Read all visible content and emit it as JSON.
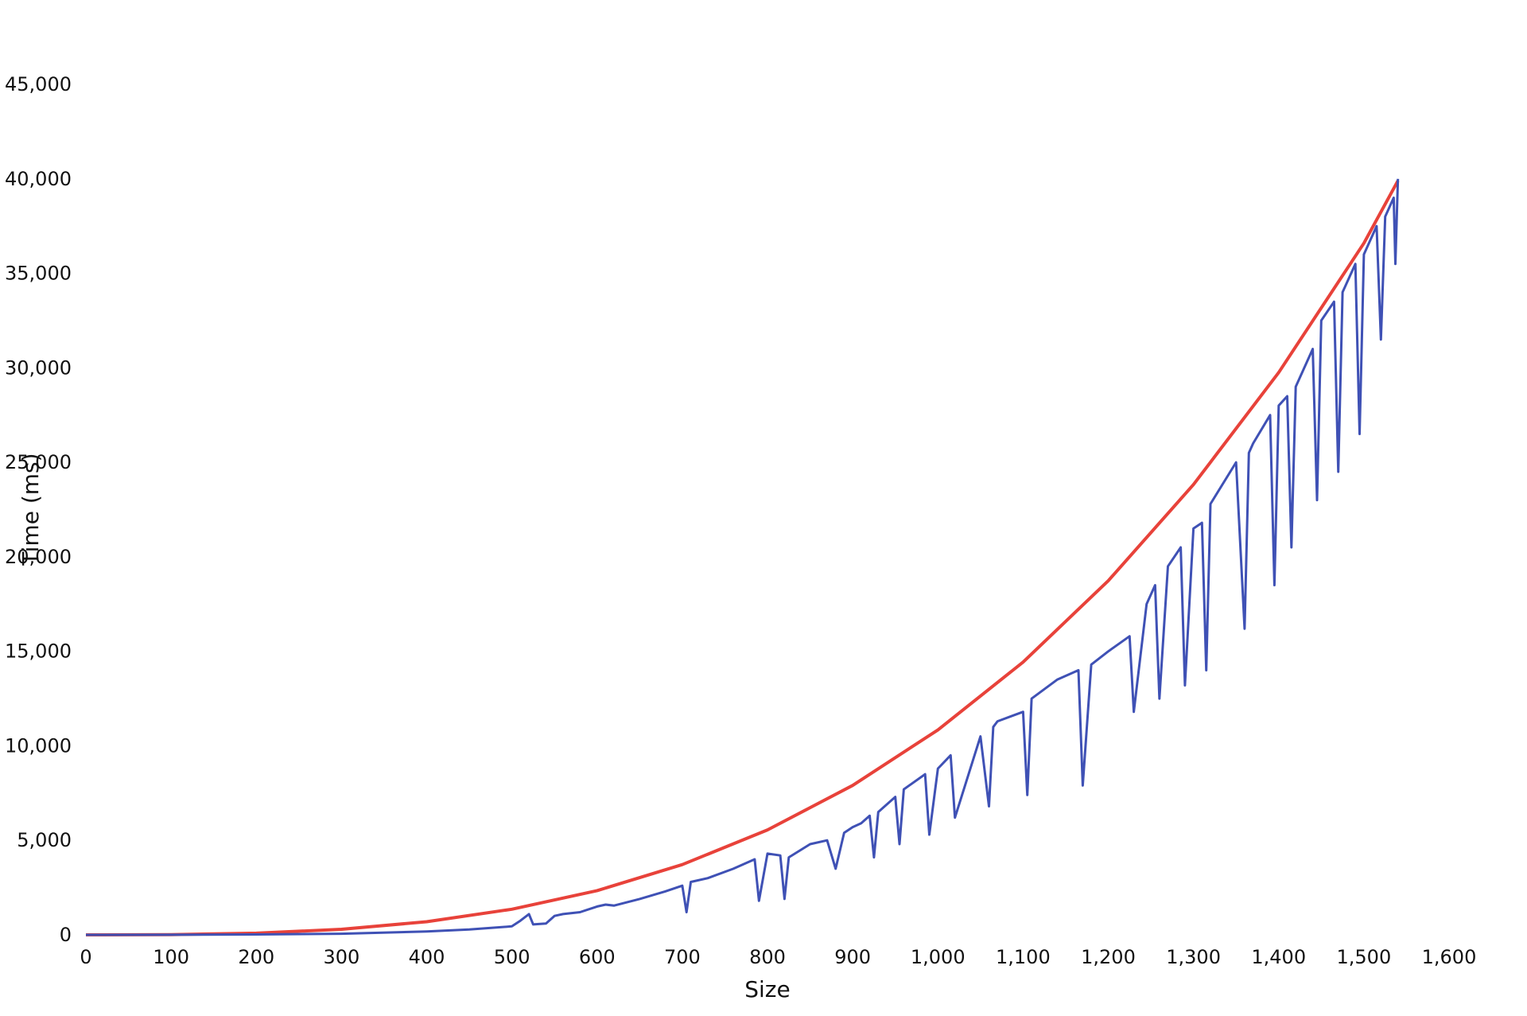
{
  "chart_data": {
    "type": "line",
    "title": "",
    "xlabel": "Size",
    "ylabel": "Time (ms)",
    "xlim": [
      0,
      1600
    ],
    "ylim": [
      0,
      45000
    ],
    "x_ticks": [
      0,
      100,
      200,
      300,
      400,
      500,
      600,
      700,
      800,
      900,
      1000,
      1100,
      1200,
      1300,
      1400,
      1500,
      1600
    ],
    "x_tick_labels": [
      "0",
      "100",
      "200",
      "300",
      "400",
      "500",
      "600",
      "700",
      "800",
      "900",
      "1,000",
      "1,100",
      "1,200",
      "1,300",
      "1,400",
      "1,500",
      "1,600"
    ],
    "y_ticks": [
      0,
      5000,
      10000,
      15000,
      20000,
      25000,
      30000,
      35000,
      40000,
      45000
    ],
    "y_tick_labels": [
      "0",
      "5,000",
      "10,000",
      "15,000",
      "20,000",
      "25,000",
      "30,000",
      "35,000",
      "40,000",
      "45,000"
    ],
    "grid": false,
    "legend": "none",
    "series": [
      {
        "color": "#e8423a",
        "x": [
          0,
          100,
          200,
          300,
          400,
          500,
          600,
          700,
          800,
          900,
          1000,
          1100,
          1200,
          1300,
          1400,
          1500,
          1540
        ],
        "values": [
          0,
          11,
          87,
          293,
          694,
          1355,
          2342,
          3719,
          5551,
          7904,
          10843,
          14432,
          18737,
          23822,
          29753,
          36595,
          39900
        ]
      },
      {
        "color": "#3f51b5",
        "x": [
          0,
          100,
          200,
          300,
          400,
          450,
          500,
          510,
          520,
          525,
          540,
          550,
          560,
          580,
          600,
          610,
          620,
          650,
          680,
          700,
          705,
          710,
          730,
          760,
          785,
          790,
          800,
          815,
          820,
          825,
          850,
          870,
          880,
          890,
          900,
          910,
          920,
          925,
          930,
          950,
          955,
          960,
          985,
          990,
          1000,
          1015,
          1020,
          1050,
          1060,
          1065,
          1070,
          1100,
          1105,
          1110,
          1140,
          1165,
          1170,
          1180,
          1200,
          1225,
          1230,
          1245,
          1255,
          1260,
          1270,
          1285,
          1290,
          1300,
          1310,
          1315,
          1320,
          1350,
          1360,
          1365,
          1370,
          1390,
          1395,
          1400,
          1410,
          1415,
          1420,
          1440,
          1445,
          1450,
          1465,
          1470,
          1475,
          1490,
          1495,
          1500,
          1515,
          1520,
          1525,
          1535,
          1537,
          1540
        ],
        "values": [
          0,
          5,
          20,
          60,
          180,
          280,
          450,
          750,
          1100,
          550,
          600,
          1000,
          1100,
          1200,
          1500,
          1600,
          1550,
          1900,
          2300,
          2600,
          1200,
          2800,
          3000,
          3500,
          4000,
          1800,
          4300,
          4200,
          1900,
          4100,
          4800,
          5000,
          3500,
          5400,
          5700,
          5900,
          6300,
          4100,
          6500,
          7300,
          4800,
          7700,
          8500,
          5300,
          8800,
          9500,
          6200,
          10500,
          6800,
          11000,
          11300,
          11800,
          7400,
          12500,
          13500,
          14000,
          7900,
          14300,
          15000,
          15800,
          11800,
          17500,
          18500,
          12500,
          19500,
          20500,
          13200,
          21500,
          21800,
          14000,
          22800,
          25000,
          16200,
          25500,
          26000,
          27500,
          18500,
          28000,
          28500,
          20500,
          29000,
          31000,
          23000,
          32500,
          33500,
          24500,
          34000,
          35500,
          26500,
          36000,
          37500,
          31500,
          38000,
          39000,
          35500,
          40000
        ]
      }
    ]
  }
}
